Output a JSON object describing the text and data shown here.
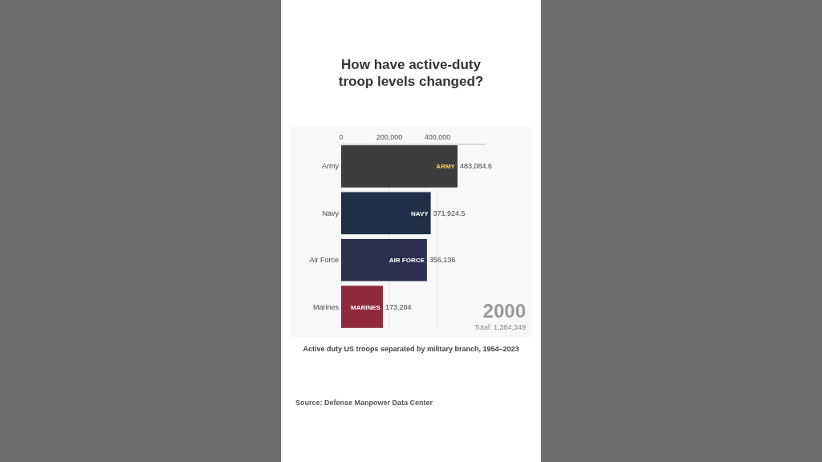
{
  "chart_data": {
    "type": "bar",
    "orientation": "horizontal",
    "title": "How have active-duty troop levels changed?",
    "categories": [
      "Army",
      "Navy",
      "Air Force",
      "Marines"
    ],
    "values": [
      483084.6,
      371924.5,
      356136,
      173204
    ],
    "colors": [
      "#3d3d3d",
      "#1f2f48",
      "#2c2f50",
      "#8f2a3a"
    ],
    "xlim": [
      0,
      600000
    ],
    "xticks": [
      {
        "value": 0,
        "label": "0"
      },
      {
        "value": 200000,
        "label": "200,000"
      },
      {
        "value": 400000,
        "label": "400,000"
      }
    ],
    "grid": "x",
    "value_labels": [
      "483,084.6",
      "371,924.5",
      "356,136",
      "173,204"
    ],
    "annotations": [
      {
        "text": "ARMY",
        "x": 483084.6,
        "y": "Army"
      },
      {
        "text": "NAVY",
        "x": 371924.5,
        "y": "Navy"
      },
      {
        "text": "AIR FORCE",
        "x": 356136,
        "y": "Air Force"
      },
      {
        "text": "MARINES",
        "x": 173204,
        "y": "Marines"
      },
      "2000",
      "Total: 1,384,349",
      "Active duty US troops separated by military branch, 1954–2023",
      "Source: Defense Manpower Data Center"
    ]
  }
}
